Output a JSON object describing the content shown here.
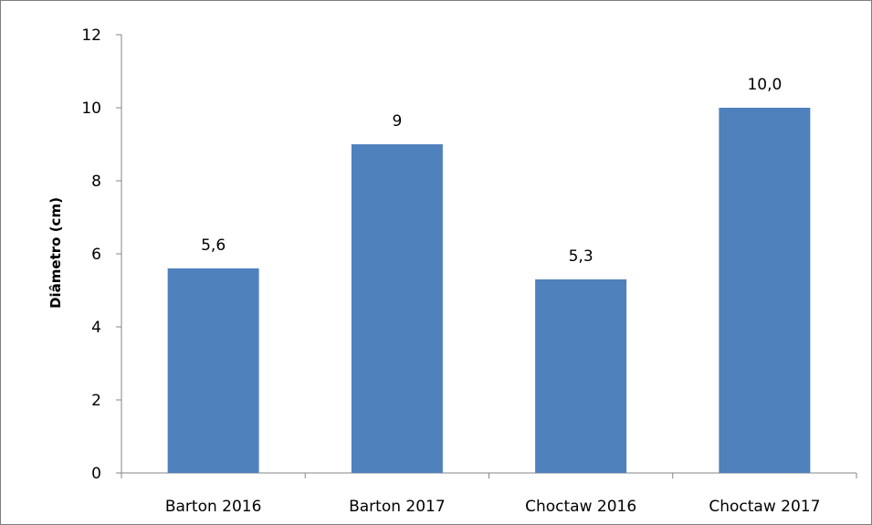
{
  "chart_data": {
    "type": "bar",
    "categories": [
      "Barton 2016",
      "Barton 2017",
      "Choctaw 2016",
      "Choctaw 2017"
    ],
    "values": [
      5.6,
      9,
      5.3,
      10.0
    ],
    "data_labels": [
      "5,6",
      "9",
      "5,3",
      "10,0"
    ],
    "ylabel": "Diâmetro (cm)",
    "xlabel": "",
    "ylim": [
      0,
      12
    ],
    "yticks": [
      0,
      2,
      4,
      6,
      8,
      10,
      12
    ],
    "ytick_labels": [
      "0",
      "2",
      "4",
      "6",
      "8",
      "10",
      "12"
    ],
    "bar_color": "#4f81bd",
    "grid": false,
    "legend": "none"
  }
}
